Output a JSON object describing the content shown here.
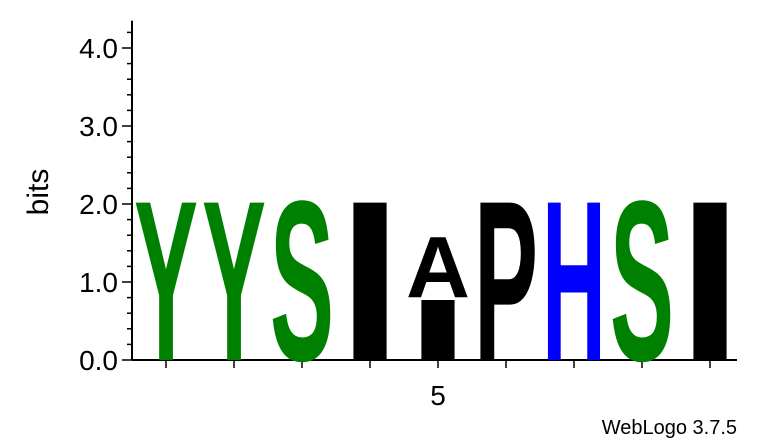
{
  "chart_data": {
    "type": "sequence_logo",
    "ylabel": "bits",
    "ylim": [
      0,
      4.3
    ],
    "y_ticks": [
      "0.0",
      "1.0",
      "2.0",
      "3.0",
      "4.0"
    ],
    "y_tick_values": [
      0,
      1,
      2,
      3,
      4
    ],
    "x_tick_labels": [
      {
        "position": 5,
        "label": "5"
      }
    ],
    "positions": [
      {
        "position": 1,
        "letters": [
          {
            "char": "Y",
            "bits": 2.1,
            "color": "#008000"
          }
        ]
      },
      {
        "position": 2,
        "letters": [
          {
            "char": "Y",
            "bits": 2.1,
            "color": "#008000"
          }
        ]
      },
      {
        "position": 3,
        "letters": [
          {
            "char": "S",
            "bits": 2.1,
            "color": "#008000"
          }
        ]
      },
      {
        "position": 4,
        "letters": [
          {
            "char": "I",
            "bits": 2.1,
            "color": "#000000"
          }
        ]
      },
      {
        "position": 5,
        "letters": [
          {
            "char": "I",
            "bits": 0.8,
            "color": "#000000"
          },
          {
            "char": "A",
            "bits": 0.8,
            "color": "#000000"
          }
        ]
      },
      {
        "position": 6,
        "letters": [
          {
            "char": "P",
            "bits": 2.1,
            "color": "#000000"
          }
        ]
      },
      {
        "position": 7,
        "letters": [
          {
            "char": "H",
            "bits": 2.1,
            "color": "#0000ff"
          }
        ]
      },
      {
        "position": 8,
        "letters": [
          {
            "char": "S",
            "bits": 2.1,
            "color": "#008000"
          }
        ]
      },
      {
        "position": 9,
        "letters": [
          {
            "char": "I",
            "bits": 2.1,
            "color": "#000000"
          }
        ]
      }
    ]
  },
  "credit": "WebLogo 3.7.5"
}
